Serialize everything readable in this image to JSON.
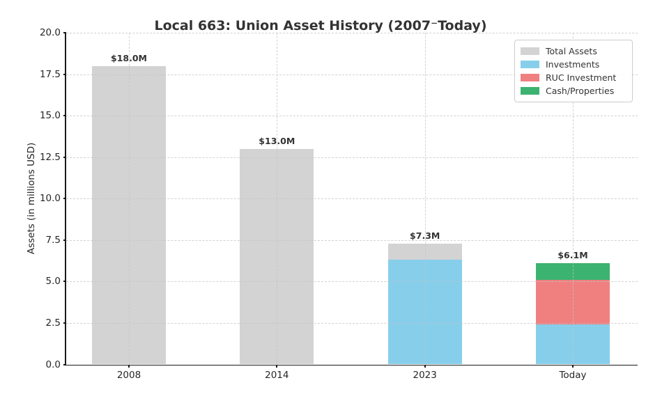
{
  "chart_data": {
    "type": "bar",
    "stacked": true,
    "title": "Local 663: Union Asset History (2007⁻Today)",
    "xlabel": "",
    "ylabel": "Assets (in millions USD)",
    "ylim": [
      0,
      20
    ],
    "ytick_values": [
      0,
      2.5,
      5,
      7.5,
      10,
      12.5,
      15,
      17.5,
      20
    ],
    "ytick_labels": [
      "0.0",
      "2.5",
      "5.0",
      "7.5",
      "10.0",
      "12.5",
      "15.0",
      "17.5",
      "20.0"
    ],
    "grid": {
      "horizontal": true,
      "vertical": true,
      "style": "dashed"
    },
    "categories": [
      "2008",
      "2014",
      "2023",
      "Today"
    ],
    "series": [
      {
        "name": "Investments",
        "color": "#87ceeb",
        "values": [
          0,
          0,
          6.3,
          2.4
        ]
      },
      {
        "name": "RUC Investment",
        "color": "#f08080",
        "values": [
          0,
          0,
          0,
          2.7
        ]
      },
      {
        "name": "Cash/Properties",
        "color": "#3cb371",
        "values": [
          0,
          0,
          0,
          1.0
        ]
      },
      {
        "name": "Total Assets",
        "color": "#d3d3d3",
        "values": [
          18.0,
          13.0,
          1.0,
          0
        ]
      }
    ],
    "totals": [
      18.0,
      13.0,
      7.3,
      6.1
    ],
    "total_labels": [
      "$18.0M",
      "$13.0M",
      "$7.3M",
      "$6.1M"
    ],
    "legend": {
      "position": "upper right",
      "entries": [
        {
          "label": "Total Assets",
          "color": "#d3d3d3"
        },
        {
          "label": "Investments",
          "color": "#87ceeb"
        },
        {
          "label": "RUC Investment",
          "color": "#f08080"
        },
        {
          "label": "Cash/Properties",
          "color": "#3cb371"
        }
      ]
    }
  },
  "colors": {
    "background": "#ffffff",
    "grid": "#c3c3c3",
    "spine": "#1a1a1a",
    "tick_text": "#262626",
    "title_text": "#333333",
    "annotation_text": "#333333",
    "legend_border": "#cccccc"
  }
}
